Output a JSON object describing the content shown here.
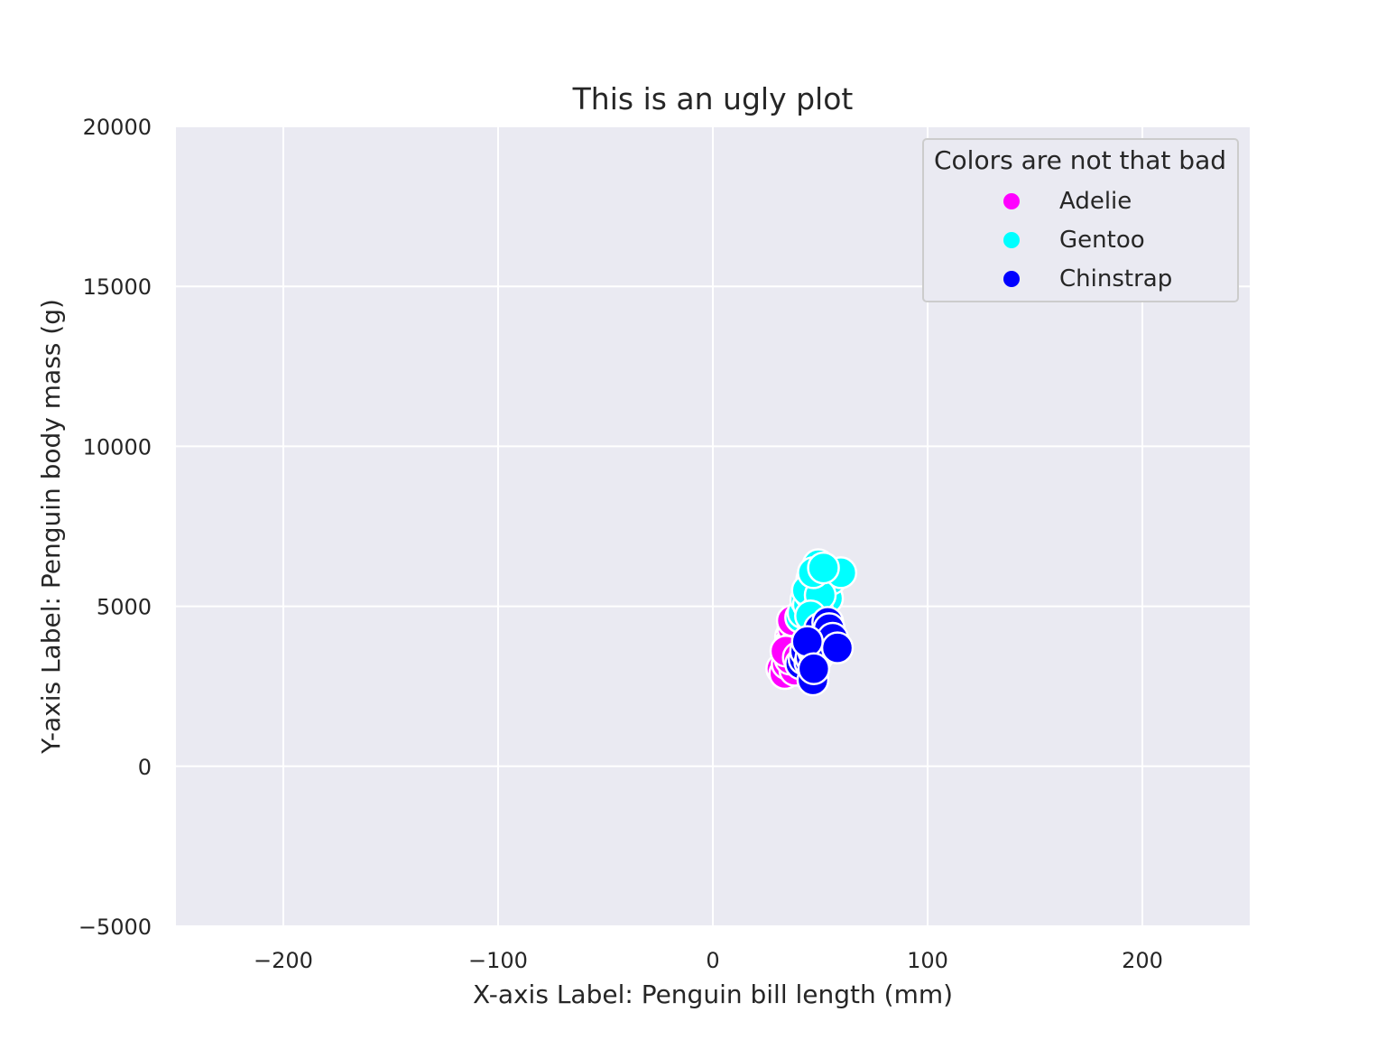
{
  "chart_data": {
    "type": "scatter",
    "title": "This is an ugly plot",
    "xlabel": "X-axis Label: Penguin bill length (mm)",
    "ylabel": "Y-axis Label: Penguin body mass (g)",
    "xlim": [
      -250,
      250
    ],
    "ylim": [
      -5000,
      20000
    ],
    "xticks": [
      -200,
      -100,
      0,
      100,
      200
    ],
    "xtick_labels": [
      "−200",
      "−100",
      "0",
      "100",
      "200"
    ],
    "yticks": [
      -5000,
      0,
      5000,
      10000,
      15000,
      20000
    ],
    "ytick_labels": [
      "−5000",
      "0",
      "5000",
      "10000",
      "15000",
      "20000"
    ],
    "grid": true,
    "legend": {
      "title": "Colors are not that bad",
      "placement": "top-right"
    },
    "series": [
      {
        "name": "Adelie",
        "color": "#ff00ff",
        "points": [
          [
            32.1,
            3050
          ],
          [
            33.5,
            2900
          ],
          [
            34.6,
            3200
          ],
          [
            35.0,
            3700
          ],
          [
            35.7,
            3450
          ],
          [
            36.2,
            4050
          ],
          [
            36.7,
            3900
          ],
          [
            37.3,
            4300
          ],
          [
            37.8,
            3550
          ],
          [
            38.6,
            3800
          ],
          [
            39.1,
            3750
          ],
          [
            39.5,
            4450
          ],
          [
            40.3,
            3250
          ],
          [
            40.9,
            4200
          ],
          [
            41.1,
            4650
          ],
          [
            42.0,
            4700
          ],
          [
            43.2,
            4400
          ],
          [
            44.1,
            4000
          ],
          [
            45.8,
            4150
          ],
          [
            38.2,
            3000
          ],
          [
            36.0,
            3350
          ],
          [
            34.0,
            3600
          ],
          [
            37.0,
            4550
          ],
          [
            39.8,
            3400
          ]
        ]
      },
      {
        "name": "Gentoo",
        "color": "#00ffff",
        "points": [
          [
            40.9,
            4650
          ],
          [
            42.0,
            4800
          ],
          [
            43.3,
            5200
          ],
          [
            44.5,
            5050
          ],
          [
            45.2,
            5400
          ],
          [
            46.1,
            5850
          ],
          [
            46.5,
            4500
          ],
          [
            47.3,
            5600
          ],
          [
            47.8,
            6000
          ],
          [
            48.4,
            5400
          ],
          [
            49.1,
            6300
          ],
          [
            49.8,
            5700
          ],
          [
            50.5,
            6100
          ],
          [
            51.1,
            5500
          ],
          [
            52.1,
            5850
          ],
          [
            53.4,
            5250
          ],
          [
            55.1,
            5850
          ],
          [
            59.6,
            6050
          ],
          [
            44.0,
            5500
          ],
          [
            48.7,
            4900
          ],
          [
            50.0,
            5350
          ],
          [
            46.8,
            6050
          ],
          [
            45.5,
            4700
          ],
          [
            51.5,
            6200
          ]
        ]
      },
      {
        "name": "Chinstrap",
        "color": "#0000ff",
        "points": [
          [
            40.9,
            3200
          ],
          [
            42.5,
            3350
          ],
          [
            43.2,
            3600
          ],
          [
            45.2,
            3250
          ],
          [
            45.7,
            3400
          ],
          [
            46.4,
            3700
          ],
          [
            46.6,
            2700
          ],
          [
            46.9,
            3600
          ],
          [
            47.5,
            3900
          ],
          [
            48.1,
            3450
          ],
          [
            48.5,
            3400
          ],
          [
            49.0,
            4000
          ],
          [
            49.7,
            4300
          ],
          [
            50.2,
            3550
          ],
          [
            50.6,
            3800
          ],
          [
            51.3,
            3650
          ],
          [
            52.0,
            4050
          ],
          [
            52.7,
            3725
          ],
          [
            53.5,
            4500
          ],
          [
            54.2,
            4300
          ],
          [
            55.8,
            4000
          ],
          [
            58.0,
            3700
          ],
          [
            44.0,
            3900
          ],
          [
            47.0,
            3050
          ]
        ]
      }
    ],
    "overlays": [
      {
        "color": "#dd8452",
        "points": [
          [
            44.5,
            4600
          ],
          [
            45.8,
            5000
          ],
          [
            47.0,
            5300
          ],
          [
            48.4,
            5600
          ],
          [
            49.6,
            5800
          ],
          [
            51.0,
            5650
          ],
          [
            52.5,
            5900
          ],
          [
            56.0,
            6000
          ],
          [
            46.2,
            4700
          ],
          [
            50.2,
            6200
          ]
        ]
      },
      {
        "color": "#55a868",
        "points": [
          [
            44.0,
            3200
          ],
          [
            45.5,
            3600
          ],
          [
            46.8,
            3400
          ],
          [
            47.5,
            3800
          ],
          [
            48.7,
            3500
          ],
          [
            50.0,
            3950
          ],
          [
            51.5,
            4100
          ],
          [
            52.0,
            3700
          ],
          [
            49.0,
            4300
          ],
          [
            46.0,
            2900
          ]
        ]
      },
      {
        "color": "#4c72b0",
        "points": [
          [
            34.5,
            3200
          ],
          [
            35.8,
            3500
          ],
          [
            36.9,
            3700
          ],
          [
            38.1,
            3400
          ],
          [
            39.5,
            3800
          ],
          [
            40.6,
            3600
          ],
          [
            37.5,
            4000
          ],
          [
            41.2,
            3900
          ],
          [
            36.0,
            3100
          ],
          [
            42.0,
            4200
          ]
        ]
      },
      {
        "color": "#c44e52",
        "points": [
          [
            36.0,
            3650
          ],
          [
            41.5,
            4300
          ],
          [
            43.0,
            4100
          ]
        ]
      }
    ]
  }
}
